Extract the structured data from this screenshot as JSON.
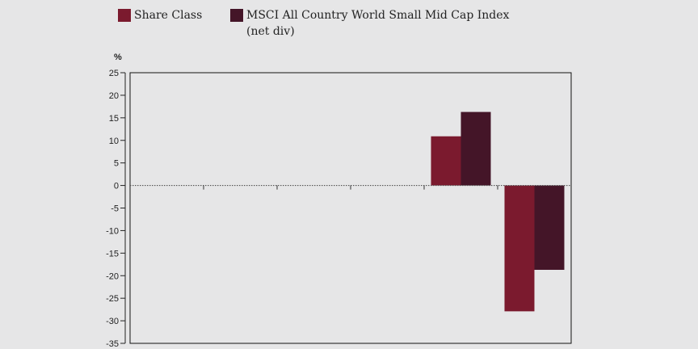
{
  "chart_data": {
    "type": "bar",
    "categories": [
      "",
      "",
      "",
      "",
      "",
      ""
    ],
    "series": [
      {
        "name": "Share Class",
        "values": [
          null,
          null,
          null,
          null,
          10.9,
          -27.9
        ],
        "color": "#7b1a2e"
      },
      {
        "name_line1": "MSCI All Country World Small Mid Cap Index",
        "name_line2": "(net div)",
        "values": [
          null,
          null,
          null,
          null,
          16.3,
          -18.7
        ],
        "color": "#441528"
      }
    ],
    "ylabel": "%",
    "ylim": [
      -35,
      25
    ],
    "yticks": [
      25,
      20,
      15,
      10,
      5,
      0,
      -5,
      -10,
      -15,
      -20,
      -25,
      -30,
      -35
    ],
    "legend": "top",
    "grid": false
  }
}
